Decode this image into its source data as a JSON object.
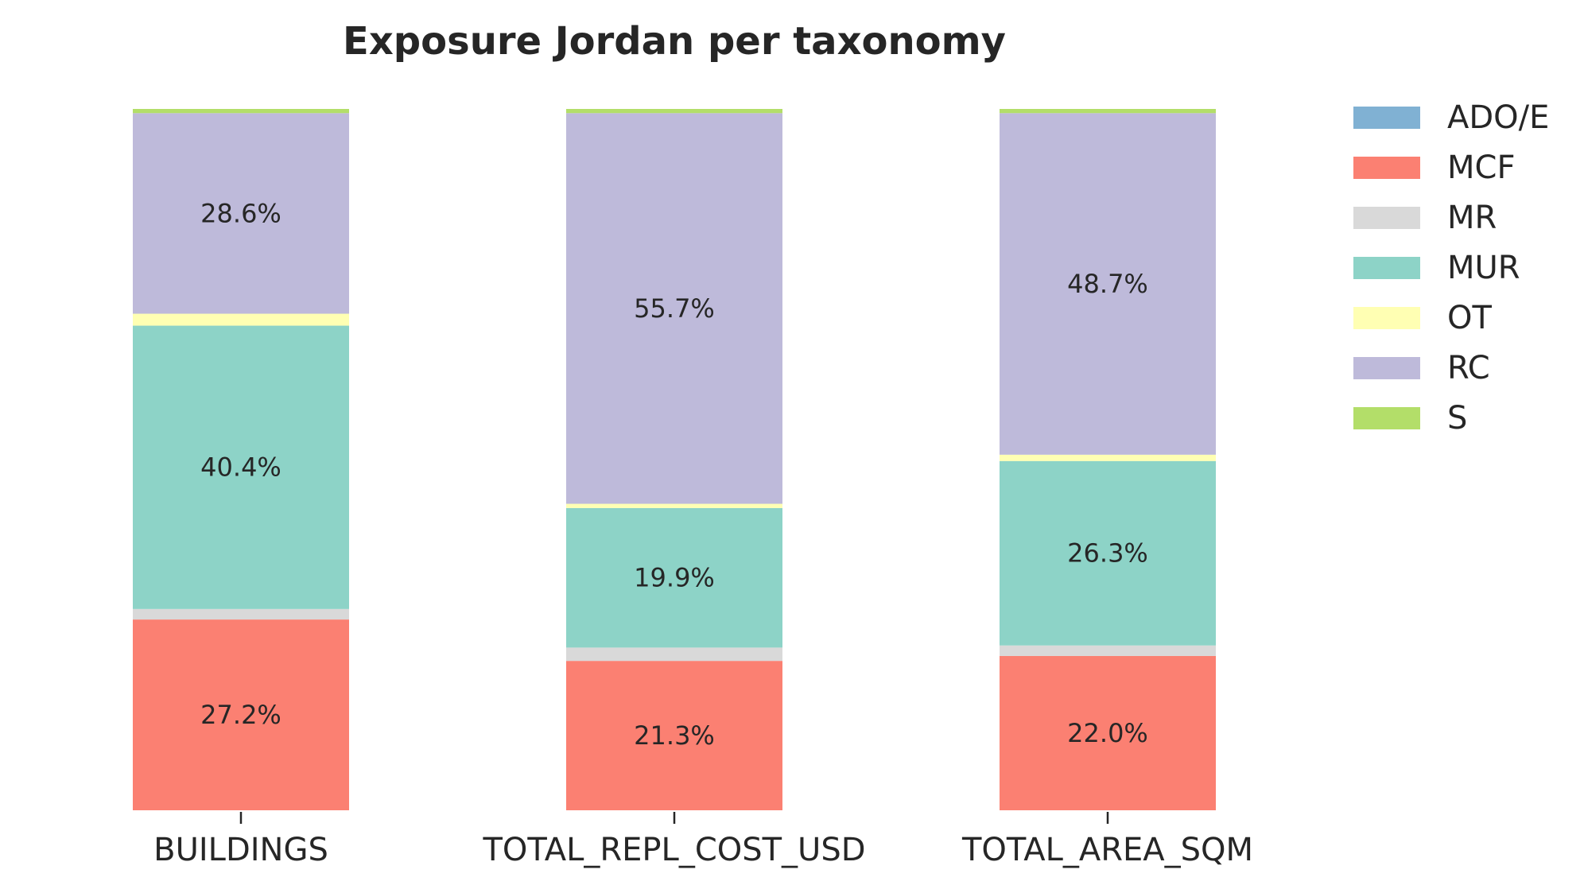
{
  "chart_data": {
    "type": "bar",
    "stacked": true,
    "normalized_percent": true,
    "title": "Exposure Jordan per taxonomy",
    "xlabel": "",
    "ylabel": "",
    "ylim": [
      0,
      100
    ],
    "grid": false,
    "legend_position": "top-right, outside plot",
    "categories": [
      "BUILDINGS",
      "TOTAL_REPL_COST_USD",
      "TOTAL_AREA_SQM"
    ],
    "series": [
      {
        "name": "ADO/E",
        "color": "#80b1d3",
        "values": [
          0.0,
          0.0,
          0.0
        ]
      },
      {
        "name": "MCF",
        "color": "#fb8072",
        "values": [
          27.2,
          21.3,
          22.0
        ]
      },
      {
        "name": "MR",
        "color": "#d9d9d9",
        "values": [
          1.5,
          1.9,
          1.5
        ]
      },
      {
        "name": "MUR",
        "color": "#8dd3c7",
        "values": [
          40.4,
          19.9,
          26.3
        ]
      },
      {
        "name": "OT",
        "color": "#ffffb3",
        "values": [
          1.7,
          0.6,
          0.9
        ]
      },
      {
        "name": "RC",
        "color": "#bebada",
        "values": [
          28.6,
          55.7,
          48.7
        ]
      },
      {
        "name": "S",
        "color": "#b3de69",
        "values": [
          0.6,
          0.6,
          0.6
        ]
      }
    ],
    "data_labels": [
      {
        "series": "MCF",
        "values": [
          "27.2%",
          "21.3%",
          "22.0%"
        ]
      },
      {
        "series": "MUR",
        "values": [
          "40.4%",
          "19.9%",
          "26.3%"
        ]
      },
      {
        "series": "RC",
        "values": [
          "28.6%",
          "55.7%",
          "48.7%"
        ]
      }
    ]
  }
}
